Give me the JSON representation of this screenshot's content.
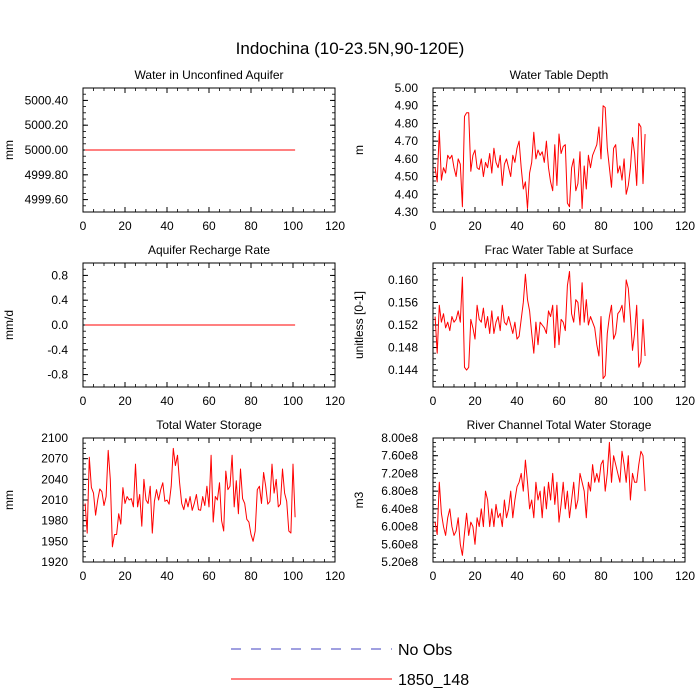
{
  "figure": {
    "title": "Indochina (10-23.5N,90-120E)",
    "colors": {
      "model": "#ff0000",
      "obs": "#4040c0",
      "axis": "#000000"
    }
  },
  "legend": {
    "entries": [
      {
        "label": "No Obs",
        "style": "dashed",
        "color": "#4040c0"
      },
      {
        "label": "1850_148",
        "style": "solid",
        "color": "#ff0000"
      }
    ]
  },
  "chart_data": [
    {
      "type": "line",
      "title": "Water in Unconfined Aquifer",
      "ylabel": "mm",
      "xlim": [
        0,
        120
      ],
      "ylim": [
        4999.5,
        5000.5
      ],
      "xticks": [
        0,
        20,
        40,
        60,
        80,
        100,
        120
      ],
      "yticks": [
        4999.6,
        4999.8,
        5000.0,
        5000.2,
        5000.4
      ],
      "ytick_labels": [
        "4999.60",
        "4999.80",
        "5000.00",
        "5000.20",
        "5000.40"
      ],
      "series": [
        {
          "name": "1850_148",
          "x_start": 1,
          "values": [
            5000,
            5000,
            5000,
            5000,
            5000,
            5000,
            5000,
            5000,
            5000,
            5000,
            5000,
            5000,
            5000,
            5000,
            5000,
            5000,
            5000,
            5000,
            5000,
            5000,
            5000,
            5000,
            5000,
            5000,
            5000,
            5000,
            5000,
            5000,
            5000,
            5000,
            5000,
            5000,
            5000,
            5000,
            5000,
            5000,
            5000,
            5000,
            5000,
            5000,
            5000,
            5000,
            5000,
            5000,
            5000,
            5000,
            5000,
            5000,
            5000,
            5000,
            5000,
            5000,
            5000,
            5000,
            5000,
            5000,
            5000,
            5000,
            5000,
            5000,
            5000,
            5000,
            5000,
            5000,
            5000,
            5000,
            5000,
            5000,
            5000,
            5000,
            5000,
            5000,
            5000,
            5000,
            5000,
            5000,
            5000,
            5000,
            5000,
            5000,
            5000,
            5000,
            5000,
            5000,
            5000,
            5000,
            5000,
            5000,
            5000,
            5000,
            5000,
            5000,
            5000,
            5000,
            5000,
            5000,
            5000,
            5000,
            5000,
            5000,
            5000
          ]
        }
      ]
    },
    {
      "type": "line",
      "title": "Water Table Depth",
      "ylabel": "m",
      "xlim": [
        0,
        120
      ],
      "ylim": [
        4.3,
        5.0
      ],
      "xticks": [
        0,
        20,
        40,
        60,
        80,
        100,
        120
      ],
      "yticks": [
        4.3,
        4.4,
        4.5,
        4.6,
        4.7,
        4.8,
        4.9,
        5.0
      ],
      "ytick_labels": [
        "4.30",
        "4.40",
        "4.50",
        "4.60",
        "4.70",
        "4.80",
        "4.90",
        "5.00"
      ],
      "series": [
        {
          "name": "1850_148",
          "x_start": 1,
          "values": [
            4.55,
            4.47,
            4.76,
            4.48,
            4.55,
            4.52,
            4.62,
            4.6,
            4.62,
            4.55,
            4.5,
            4.6,
            4.57,
            4.33,
            4.84,
            4.86,
            4.86,
            4.53,
            4.62,
            4.65,
            4.55,
            4.54,
            4.6,
            4.5,
            4.58,
            4.55,
            4.63,
            4.52,
            4.66,
            4.58,
            4.55,
            4.62,
            4.45,
            4.57,
            4.6,
            4.55,
            4.5,
            4.62,
            4.58,
            4.66,
            4.7,
            4.55,
            4.43,
            4.47,
            4.32,
            4.52,
            4.58,
            4.75,
            4.6,
            4.65,
            4.62,
            4.64,
            4.58,
            4.7,
            4.55,
            4.47,
            4.42,
            4.68,
            4.45,
            4.74,
            4.63,
            4.67,
            4.68,
            4.35,
            4.33,
            4.55,
            4.6,
            4.42,
            4.46,
            4.64,
            4.32,
            4.56,
            4.43,
            4.62,
            4.55,
            4.62,
            4.65,
            4.68,
            4.78,
            4.6,
            4.9,
            4.89,
            4.66,
            4.55,
            4.44,
            4.66,
            4.68,
            4.52,
            4.56,
            4.48,
            4.6,
            4.4,
            4.45,
            4.55,
            4.72,
            4.63,
            4.45,
            4.8,
            4.78,
            4.46,
            4.74
          ]
        }
      ]
    },
    {
      "type": "line",
      "title": "Aquifer Recharge Rate",
      "ylabel": "mm/d",
      "xlim": [
        0,
        120
      ],
      "ylim": [
        -1.0,
        1.0
      ],
      "xticks": [
        0,
        20,
        40,
        60,
        80,
        100,
        120
      ],
      "yticks": [
        -0.8,
        -0.4,
        0.0,
        0.4,
        0.8
      ],
      "ytick_labels": [
        "-0.8",
        "-0.4",
        "0.0",
        "0.4",
        "0.8"
      ],
      "series": [
        {
          "name": "1850_148",
          "x_start": 1,
          "values": [
            0,
            0,
            0,
            0,
            0,
            0,
            0,
            0,
            0,
            0,
            0,
            0,
            0,
            0,
            0,
            0,
            0,
            0,
            0,
            0,
            0,
            0,
            0,
            0,
            0,
            0,
            0,
            0,
            0,
            0,
            0,
            0,
            0,
            0,
            0,
            0,
            0,
            0,
            0,
            0,
            0,
            0,
            0,
            0,
            0,
            0,
            0,
            0,
            0,
            0,
            0,
            0,
            0,
            0,
            0,
            0,
            0,
            0,
            0,
            0,
            0,
            0,
            0,
            0,
            0,
            0,
            0,
            0,
            0,
            0,
            0,
            0,
            0,
            0,
            0,
            0,
            0,
            0,
            0,
            0,
            0,
            0,
            0,
            0,
            0,
            0,
            0,
            0,
            0,
            0,
            0,
            0,
            0,
            0,
            0,
            0,
            0,
            0,
            0,
            0,
            0
          ]
        }
      ]
    },
    {
      "type": "line",
      "title": "Frac Water Table at Surface",
      "ylabel": "unitless [0-1]",
      "xlim": [
        0,
        120
      ],
      "ylim": [
        0.141,
        0.163
      ],
      "xticks": [
        0,
        20,
        40,
        60,
        80,
        100,
        120
      ],
      "yticks": [
        0.144,
        0.148,
        0.152,
        0.156,
        0.16
      ],
      "ytick_labels": [
        "0.144",
        "0.148",
        "0.152",
        "0.156",
        "0.160"
      ],
      "series": [
        {
          "name": "1850_148",
          "x_start": 1,
          "values": [
            0.1535,
            0.147,
            0.1555,
            0.1525,
            0.154,
            0.1515,
            0.1525,
            0.151,
            0.1535,
            0.1525,
            0.153,
            0.1545,
            0.1525,
            0.1605,
            0.1445,
            0.144,
            0.1445,
            0.153,
            0.1515,
            0.1495,
            0.1555,
            0.153,
            0.1525,
            0.155,
            0.1515,
            0.1535,
            0.1505,
            0.1545,
            0.1505,
            0.1525,
            0.1535,
            0.151,
            0.1555,
            0.1525,
            0.152,
            0.1535,
            0.152,
            0.1505,
            0.1525,
            0.1495,
            0.15,
            0.153,
            0.156,
            0.161,
            0.1565,
            0.1545,
            0.1505,
            0.147,
            0.1525,
            0.1485,
            0.1525,
            0.152,
            0.1515,
            0.1505,
            0.1545,
            0.1535,
            0.1555,
            0.148,
            0.1555,
            0.1485,
            0.153,
            0.1525,
            0.151,
            0.159,
            0.1615,
            0.154,
            0.1525,
            0.1565,
            0.156,
            0.152,
            0.1595,
            0.1525,
            0.1565,
            0.152,
            0.1535,
            0.1525,
            0.1515,
            0.1485,
            0.1465,
            0.1535,
            0.1425,
            0.143,
            0.1505,
            0.1535,
            0.1555,
            0.1495,
            0.1505,
            0.154,
            0.1545,
            0.1555,
            0.1525,
            0.16,
            0.1585,
            0.1535,
            0.1475,
            0.1505,
            0.1555,
            0.1445,
            0.1455,
            0.153,
            0.1465
          ]
        }
      ]
    },
    {
      "type": "line",
      "title": "Total Water Storage",
      "ylabel": "mm",
      "xlim": [
        0,
        120
      ],
      "ylim": [
        1920,
        2100
      ],
      "xticks": [
        0,
        20,
        40,
        60,
        80,
        100,
        120
      ],
      "yticks": [
        1920,
        1950,
        1980,
        2010,
        2040,
        2070,
        2100
      ],
      "ytick_labels": [
        "1920",
        "1950",
        "1980",
        "2010",
        "2040",
        "2070",
        "2100"
      ],
      "series": [
        {
          "name": "1850_148",
          "x_start": 1,
          "values": [
            2005,
            1962,
            2072,
            2028,
            2020,
            1988,
            2010,
            2026,
            2022,
            2002,
            2015,
            2082,
            2040,
            1942,
            1960,
            1960,
            1990,
            1975,
            2028,
            2005,
            2015,
            2010,
            2012,
            2000,
            2062,
            2000,
            2018,
            1972,
            2040,
            2010,
            2005,
            2030,
            1962,
            2008,
            2025,
            2010,
            2025,
            2035,
            2008,
            2010,
            2004,
            2030,
            2085,
            2060,
            2075,
            2035,
            2005,
            1996,
            2012,
            2000,
            2015,
            1995,
            2005,
            2018,
            1996,
            1995,
            2015,
            2002,
            2030,
            2000,
            2075,
            1978,
            2015,
            2010,
            2035,
            1980,
            1965,
            2052,
            2025,
            2030,
            2075,
            2000,
            2038,
            1990,
            2055,
            2012,
            2005,
            1982,
            1978,
            1960,
            1950,
            1965,
            2025,
            2030,
            2005,
            2050,
            2030,
            2004,
            2008,
            2062,
            2020,
            2040,
            2000,
            2004,
            2055,
            2020,
            2008,
            1965,
            1962,
            2062,
            1985
          ]
        }
      ]
    },
    {
      "type": "line",
      "title": "River Channel Total Water Storage",
      "ylabel": "m3",
      "xlim": [
        0,
        120
      ],
      "ylim": [
        520000000,
        800000000
      ],
      "xticks": [
        0,
        20,
        40,
        60,
        80,
        100,
        120
      ],
      "yticks": [
        520000000,
        560000000,
        600000000,
        640000000,
        680000000,
        720000000,
        760000000,
        800000000
      ],
      "ytick_labels": [
        "5.20e8",
        "5.60e8",
        "6.00e8",
        "6.40e8",
        "6.80e8",
        "7.20e8",
        "7.60e8",
        "8.00e8"
      ],
      "series": [
        {
          "name": "1850_148",
          "x_start": 1,
          "values": [
            610000000,
            582000000,
            700000000,
            630000000,
            600000000,
            580000000,
            620000000,
            640000000,
            600000000,
            580000000,
            590000000,
            620000000,
            560000000,
            535000000,
            585000000,
            630000000,
            580000000,
            610000000,
            600000000,
            560000000,
            620000000,
            600000000,
            640000000,
            600000000,
            680000000,
            660000000,
            600000000,
            640000000,
            600000000,
            650000000,
            620000000,
            630000000,
            600000000,
            660000000,
            620000000,
            640000000,
            680000000,
            620000000,
            660000000,
            690000000,
            700000000,
            720000000,
            680000000,
            750000000,
            700000000,
            640000000,
            660000000,
            620000000,
            700000000,
            660000000,
            680000000,
            620000000,
            690000000,
            640000000,
            700000000,
            660000000,
            720000000,
            650000000,
            700000000,
            610000000,
            650000000,
            700000000,
            640000000,
            680000000,
            620000000,
            660000000,
            700000000,
            640000000,
            660000000,
            720000000,
            700000000,
            680000000,
            620000000,
            700000000,
            680000000,
            740000000,
            700000000,
            720000000,
            700000000,
            740000000,
            750000000,
            680000000,
            720000000,
            790000000,
            700000000,
            760000000,
            740000000,
            720000000,
            700000000,
            770000000,
            740000000,
            700000000,
            760000000,
            660000000,
            720000000,
            700000000,
            700000000,
            740000000,
            770000000,
            760000000,
            680000000
          ]
        }
      ]
    }
  ]
}
